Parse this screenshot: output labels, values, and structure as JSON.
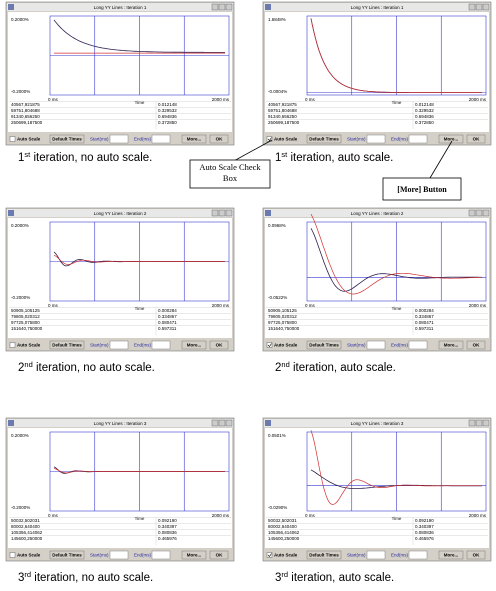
{
  "panels": [
    {
      "title": "Long YY Lines : Iteration 1",
      "ytop": "0.2000%",
      "ybottom": "-0.2000%",
      "xleft": "0 ms",
      "xmid": "Time",
      "xright": "2000 ms",
      "rows": [
        [
          "40567,921875",
          "0.012148"
        ],
        [
          "59751,804688",
          "0.329532"
        ],
        [
          "91340,656250",
          "0.694836"
        ],
        [
          "250699,187500",
          "0.372850"
        ]
      ],
      "buttons": {
        "auto": "Auto Scale",
        "defaults": "Default Times",
        "start": "Start(ms)",
        "end": "End(ms)",
        "more": "More...",
        "ok": "OK"
      },
      "caption": {
        "num": "1",
        "sup": "st",
        "rest": " iteration, no auto scale."
      }
    },
    {
      "title": "Long YY Lines : Iteration 1",
      "ytop": "1.6848%",
      "ybottom": "-0.0004%",
      "xleft": "0 ms",
      "xmid": "Time",
      "xright": "2000 ms",
      "rows": [
        [
          "40567,921875",
          "0.012148"
        ],
        [
          "59751,804688",
          "0.329532"
        ],
        [
          "91340,656250",
          "0.694836"
        ],
        [
          "250699,187500",
          "0.372850"
        ]
      ],
      "buttons": {
        "auto": "Auto Scale",
        "defaults": "Default Times",
        "start": "Start(ms)",
        "end": "End(ms)",
        "more": "More...",
        "ok": "OK"
      },
      "caption": {
        "num": "1",
        "sup": "st",
        "rest": " iteration, auto scale."
      }
    },
    {
      "title": "Long YY Lines : Iteration 2",
      "ytop": "0.2000%",
      "ybottom": "-0.2000%",
      "xleft": "0 ms",
      "xmid": "Time",
      "xright": "2000 ms",
      "rows": [
        [
          "50905,105125",
          "0.000284"
        ],
        [
          "79805,020312",
          "0.334867"
        ],
        [
          "97725,075800",
          "0.080471"
        ],
        [
          "151640,750000",
          "0.597311"
        ]
      ],
      "buttons": {
        "auto": "Auto Scale",
        "defaults": "Default Times",
        "start": "Start(ms)",
        "end": "End(ms)",
        "more": "More...",
        "ok": "OK"
      },
      "caption": {
        "num": "2",
        "sup": "nd",
        "rest": " iteration, no auto scale."
      }
    },
    {
      "title": "Long YY Lines : Iteration 2",
      "ytop": "0.0968%",
      "ybottom": "-0.0522%",
      "xleft": "0 ms",
      "xmid": "Time",
      "xright": "2000 ms",
      "rows": [
        [
          "50905,105125",
          "0.000284"
        ],
        [
          "79805,020312",
          "0.334867"
        ],
        [
          "97725,075800",
          "0.080471"
        ],
        [
          "151640,750000",
          "0.597311"
        ]
      ],
      "buttons": {
        "auto": "Auto Scale",
        "defaults": "Default Times",
        "start": "Start(ms)",
        "end": "End(ms)",
        "more": "More...",
        "ok": "OK"
      },
      "caption": {
        "num": "2",
        "sup": "nd",
        "rest": " iteration, auto scale."
      }
    },
    {
      "title": "Long YY Lines : Iteration 3",
      "ytop": "0.2000%",
      "ybottom": "-0.2000%",
      "xleft": "0 ms",
      "xmid": "Time",
      "xright": "2000 ms",
      "rows": [
        [
          "50032,502031",
          "0.092190"
        ],
        [
          "80002,640400",
          "0.340397"
        ],
        [
          "105356,414062",
          "0.080836"
        ],
        [
          "145600,250000",
          "0.465976"
        ]
      ],
      "buttons": {
        "auto": "Auto Scale",
        "defaults": "Default Times",
        "start": "Start(ms)",
        "end": "End(ms)",
        "more": "More...",
        "ok": "OK"
      },
      "caption": {
        "num": "3",
        "sup": "rd",
        "rest": " iteration, no auto scale."
      }
    },
    {
      "title": "Long YY Lines : Iteration 3",
      "ytop": "0.0501%",
      "ybottom": "-0.0290%",
      "xleft": "0 ms",
      "xmid": "Time",
      "xright": "2000 ms",
      "rows": [
        [
          "50032,502031",
          "0.092190"
        ],
        [
          "80002,640400",
          "0.340397"
        ],
        [
          "105356,414062",
          "0.080836"
        ],
        [
          "145600,250000",
          "0.465976"
        ]
      ],
      "buttons": {
        "auto": "Auto Scale",
        "defaults": "Default Times",
        "start": "Start(ms)",
        "end": "End(ms)",
        "more": "More...",
        "ok": "OK"
      },
      "caption": {
        "num": "3",
        "sup": "rd",
        "rest": " iteration, auto scale."
      }
    }
  ],
  "callouts": {
    "autoscale": "Auto Scale Check Box",
    "more": "[More] Button"
  }
}
